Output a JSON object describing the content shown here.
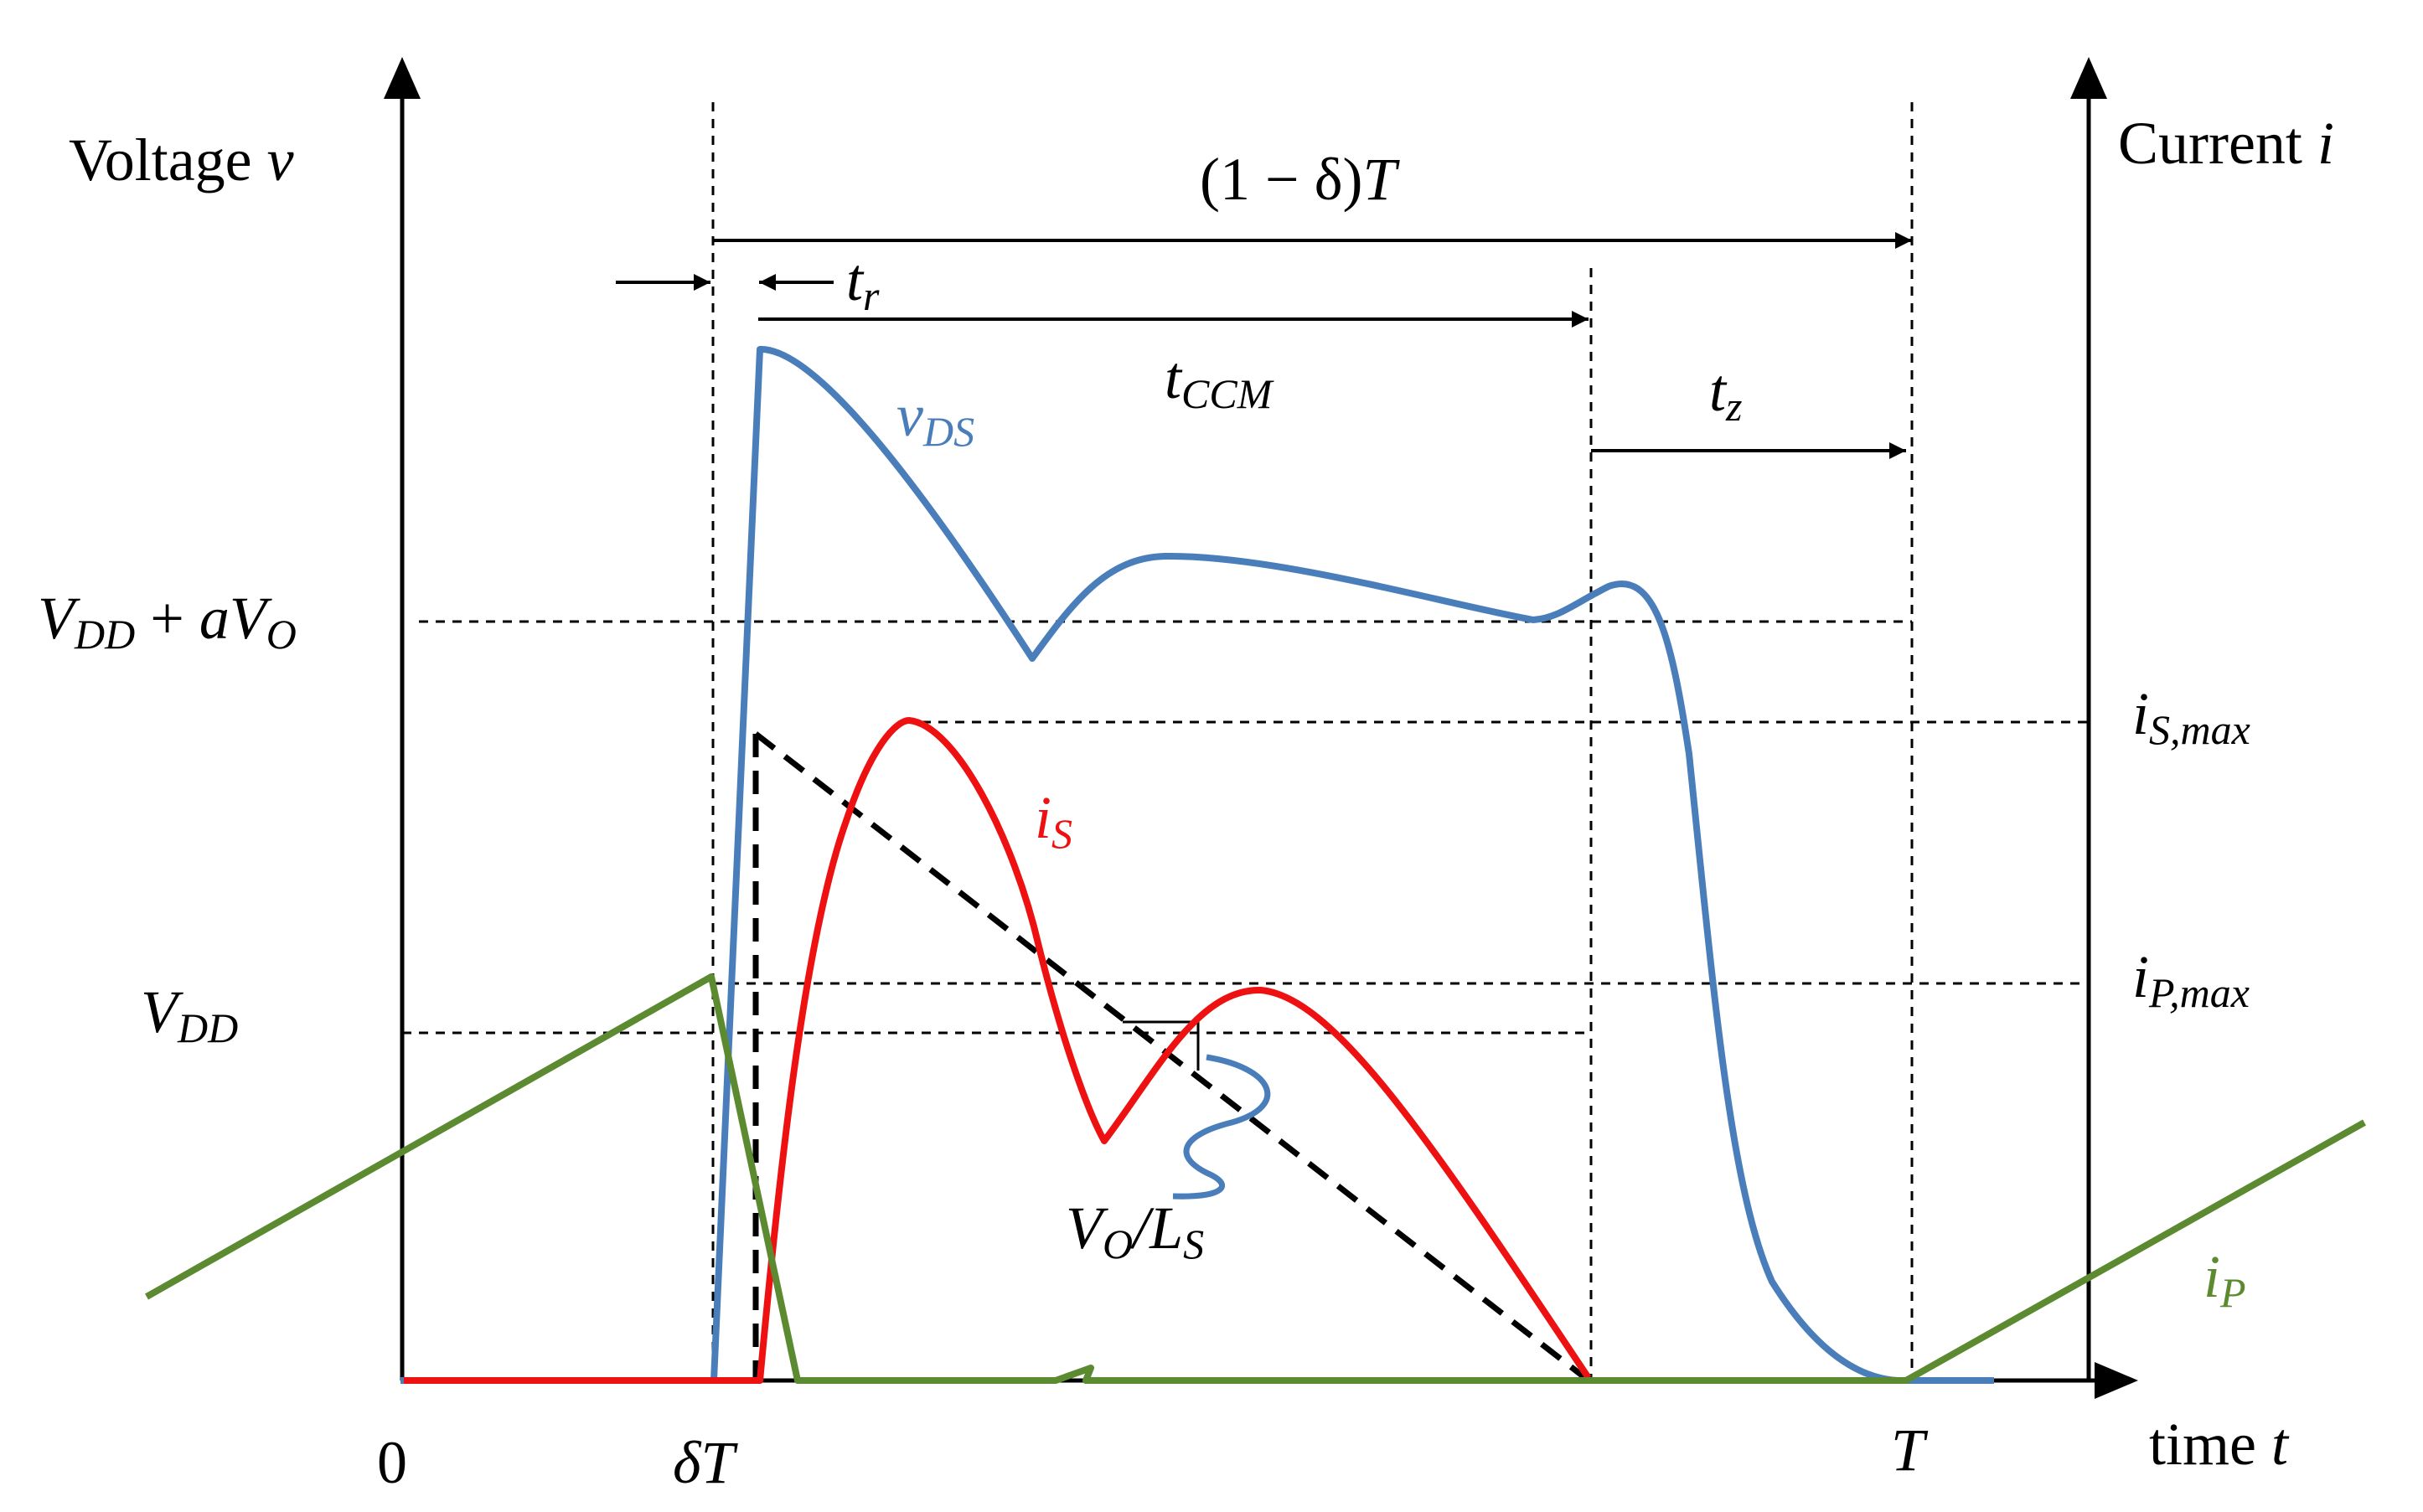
{
  "labels": {
    "voltage_axis": "Voltage ",
    "voltage_var": "v",
    "current_axis": "Current ",
    "current_var": "i",
    "time_axis": "time ",
    "time_var": "t",
    "origin": "0",
    "delta_t": "δT",
    "period": "T",
    "off_interval": "(1 − δ)",
    "off_interval_T": "T",
    "tr": "t",
    "tr_sub": "r",
    "tccm": "t",
    "tccm_sub": "CCM",
    "tz": "t",
    "tz_sub": "z",
    "vds": "v",
    "vds_sub": "DS",
    "is": "i",
    "is_sub": "S",
    "ip": "i",
    "ip_sub": "P",
    "vdd_avo_v": "V",
    "vdd_avo_sub1": "DD",
    "vdd_avo_plus": " + ",
    "vdd_avo_a": "aV",
    "vdd_avo_sub2": "O",
    "vdd": "V",
    "vdd_sub": "DD",
    "ismax": "i",
    "ismax_sub": "S,max",
    "ipmax": "i",
    "ipmax_sub": "P,max",
    "slope_vo": "V",
    "slope_vo_sub": "O",
    "slope_slash": "/L",
    "slope_ls_sub": "S"
  },
  "colors": {
    "axes": "#000000",
    "vds": "#4a7ebb",
    "is": "#ee1111",
    "ip": "#5b8a30",
    "text": "#000000"
  }
}
